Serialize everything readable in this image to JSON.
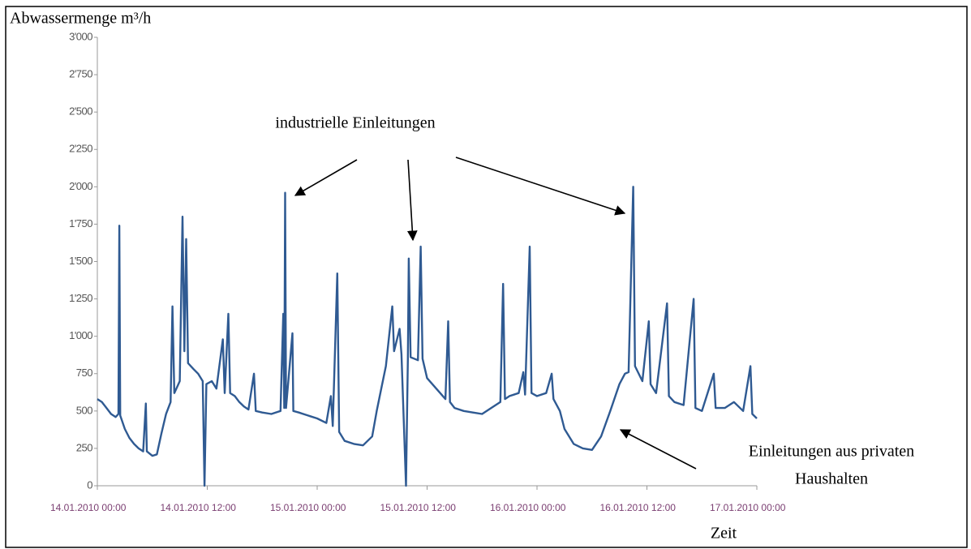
{
  "chart_data": {
    "type": "line",
    "y_label": "Abwassermenge m³/h",
    "x_label": "Zeit",
    "annotations": [
      "industrielle Einleitungen",
      "Einleitungen aus privaten",
      "Haushalten"
    ],
    "color": "#2f5a92",
    "xlim": [
      0,
      72
    ],
    "xticks": [
      {
        "value": 0,
        "label": "14.01.2010 00:00"
      },
      {
        "value": 12,
        "label": "14.01.2010 12:00"
      },
      {
        "value": 24,
        "label": "15.01.2010 00:00"
      },
      {
        "value": 36,
        "label": "15.01.2010 12:00"
      },
      {
        "value": 48,
        "label": "16.01.2010 00:00"
      },
      {
        "value": 60,
        "label": "16.01.2010 12:00"
      },
      {
        "value": 72,
        "label": "17.01.2010 00:00"
      }
    ],
    "ylim": [
      0,
      3000
    ],
    "yticks": [
      0,
      250,
      500,
      750,
      {
        "value": 1000,
        "label": "1'000"
      },
      {
        "value": 1250,
        "label": "1'250"
      },
      {
        "value": 1500,
        "label": "1'500"
      },
      {
        "value": 1750,
        "label": "1'750"
      },
      {
        "value": 2000,
        "label": "2'000"
      },
      {
        "value": 2250,
        "label": "2'250"
      },
      {
        "value": 2500,
        "label": "2'500"
      },
      {
        "value": 2750,
        "label": "2'750"
      },
      {
        "value": 3000,
        "label": "3'000"
      }
    ],
    "x": [
      0,
      0.5,
      1,
      1.5,
      2,
      2.3,
      2.4,
      2.5,
      3,
      3.5,
      4,
      4.5,
      5,
      5.3,
      5.4,
      6,
      6.5,
      7,
      7.5,
      8,
      8.2,
      8.4,
      9,
      9.3,
      9.5,
      9.7,
      9.9,
      10.5,
      11,
      11.5,
      11.7,
      11.9,
      12.5,
      13,
      13.7,
      13.9,
      14.3,
      14.5,
      15,
      15.5,
      16,
      16.5,
      17.1,
      17.3,
      18,
      19,
      20,
      20.3,
      20.4,
      20.5,
      20.6,
      21.3,
      21.4,
      22,
      23,
      24,
      25,
      25.5,
      25.7,
      26.2,
      26.4,
      27,
      28,
      29,
      30,
      30.5,
      31,
      31.5,
      32.2,
      32.4,
      33,
      33.2,
      33.7,
      33.9,
      34,
      34.2,
      35,
      35.3,
      35.5,
      36,
      37,
      38,
      38.3,
      38.5,
      39,
      40,
      41,
      42,
      43,
      44,
      44.3,
      44.5,
      45,
      46,
      46.5,
      46.7,
      47.2,
      47.4,
      48,
      49,
      49.6,
      49.8,
      50.5,
      51,
      52,
      53,
      54,
      55,
      56,
      57,
      57.6,
      58,
      58.5,
      58.7,
      59.5,
      60.2,
      60.4,
      61,
      62.2,
      62.4,
      63,
      64,
      65.1,
      65.3,
      66,
      67.3,
      67.5,
      68.5,
      69.5,
      70.5,
      71.3,
      71.5,
      72
    ],
    "values": [
      580,
      560,
      520,
      480,
      460,
      480,
      1740,
      470,
      380,
      320,
      280,
      250,
      230,
      550,
      230,
      200,
      210,
      350,
      480,
      560,
      1200,
      620,
      700,
      1800,
      900,
      1650,
      820,
      780,
      750,
      700,
      0,
      680,
      700,
      650,
      980,
      620,
      1150,
      620,
      600,
      560,
      530,
      510,
      750,
      500,
      490,
      480,
      500,
      1150,
      520,
      1960,
      520,
      1020,
      500,
      490,
      470,
      450,
      420,
      600,
      400,
      1420,
      360,
      300,
      280,
      270,
      330,
      500,
      650,
      800,
      1200,
      900,
      1050,
      880,
      0,
      850,
      1520,
      860,
      840,
      1600,
      850,
      720,
      650,
      580,
      1100,
      560,
      520,
      500,
      490,
      480,
      520,
      560,
      1350,
      580,
      600,
      620,
      760,
      610,
      1600,
      620,
      600,
      620,
      750,
      580,
      500,
      380,
      280,
      250,
      240,
      330,
      500,
      680,
      750,
      760,
      2000,
      800,
      700,
      1100,
      680,
      620,
      1220,
      600,
      560,
      540,
      1250,
      520,
      500,
      750,
      520,
      520,
      560,
      500,
      800,
      480,
      450
    ]
  }
}
